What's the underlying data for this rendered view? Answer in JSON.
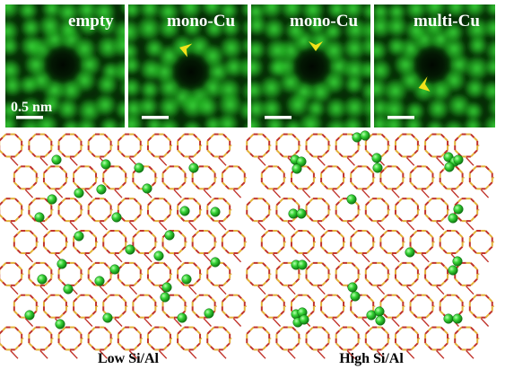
{
  "panels": [
    {
      "label": "empty",
      "marker": false,
      "scale_label": "0.5 nm"
    },
    {
      "label": "mono-Cu",
      "marker": true,
      "scale_label": ""
    },
    {
      "label": "mono-Cu",
      "marker": true,
      "scale_label": ""
    },
    {
      "label": "multi-Cu",
      "marker": true,
      "scale_label": ""
    }
  ],
  "models": [
    {
      "caption": "Low Si/Al"
    },
    {
      "caption": "High Si/Al"
    }
  ],
  "colors": {
    "stm_dark": "#062a06",
    "stm_bright": "#3fe43f",
    "framework_red": "#c0322a",
    "framework_gold": "#e3b33a",
    "copper_green": "#37d437",
    "marker_yellow": "#f2e21a"
  }
}
